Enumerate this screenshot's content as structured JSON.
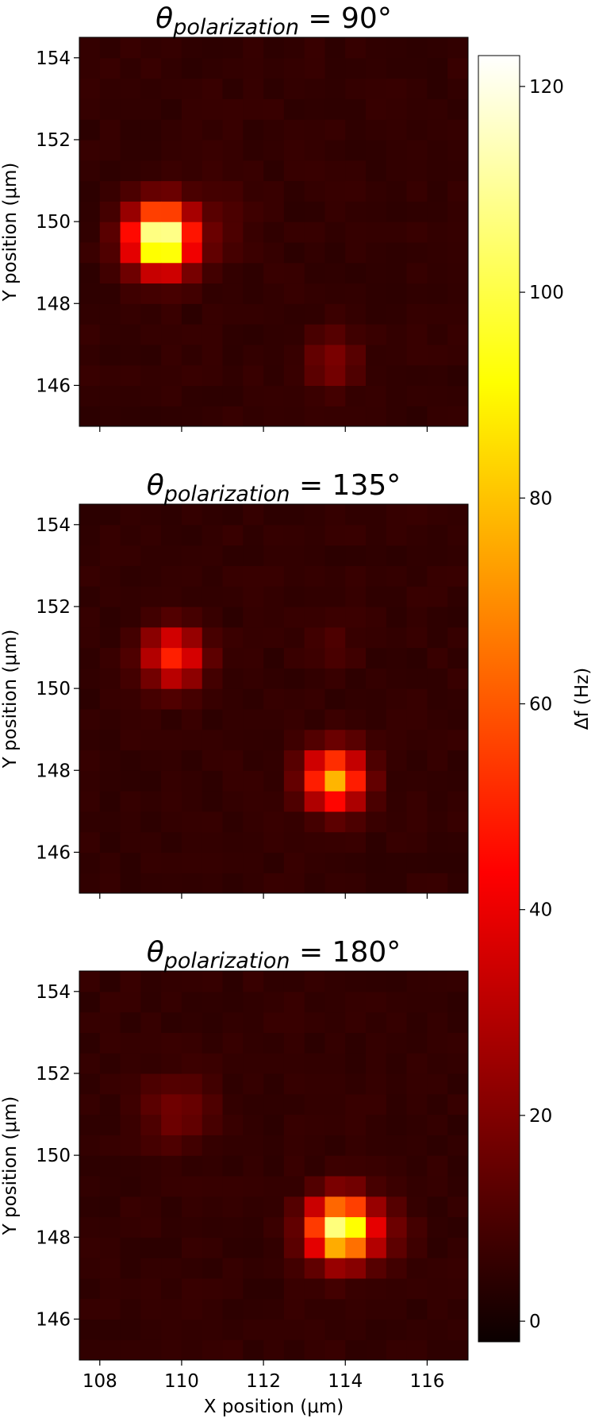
{
  "chart_data": {
    "type": "heatmap",
    "colormap": "hot",
    "panels": [
      {
        "title_symbol": "θ",
        "title_subscript": "polarization",
        "title_value": "= 90°",
        "blobs": [
          {
            "x": 109.5,
            "y": 149.6,
            "amp": 122,
            "w": 0.75
          },
          {
            "x": 113.7,
            "y": 146.6,
            "amp": 16,
            "w": 0.65
          },
          {
            "x": 111.0,
            "y": 150.0,
            "amp": 5,
            "w": 0.9
          }
        ]
      },
      {
        "title_symbol": "θ",
        "title_subscript": "polarization",
        "title_value": "= 135°",
        "blobs": [
          {
            "x": 109.8,
            "y": 150.8,
            "amp": 48,
            "w": 0.7
          },
          {
            "x": 113.75,
            "y": 147.8,
            "amp": 76,
            "w": 0.7
          },
          {
            "x": 113.7,
            "y": 151.1,
            "amp": 5,
            "w": 0.6
          }
        ]
      },
      {
        "title_symbol": "θ",
        "title_subscript": "polarization",
        "title_value": "= 180°",
        "blobs": [
          {
            "x": 109.9,
            "y": 151.1,
            "amp": 13,
            "w": 0.85
          },
          {
            "x": 113.9,
            "y": 148.2,
            "amp": 108,
            "w": 0.75
          },
          {
            "x": 115.0,
            "y": 148.2,
            "amp": 8,
            "w": 0.7
          }
        ]
      }
    ],
    "x_range": [
      107.5,
      117.0
    ],
    "y_range": [
      145.0,
      154.5
    ],
    "pixel_size": 0.5,
    "xticks": [
      108,
      110,
      112,
      114,
      116
    ],
    "yticks": [
      146,
      148,
      150,
      152,
      154
    ],
    "xlabel": "X position (μm)",
    "ylabel": "Y position (μm)",
    "colorbar": {
      "label": "Δf (Hz)",
      "vmin": -2,
      "vmax": 123,
      "ticks": [
        0,
        20,
        40,
        60,
        80,
        100,
        120
      ]
    }
  }
}
